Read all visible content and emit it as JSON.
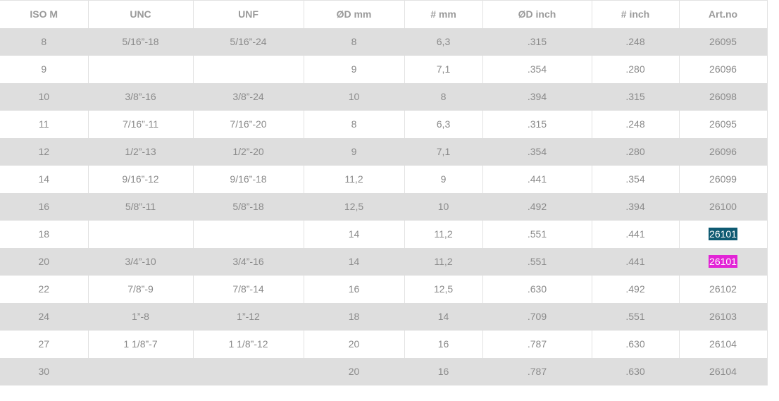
{
  "table": {
    "columns": [
      "ISO M",
      "UNC",
      "UNF",
      "ØD mm",
      "# mm",
      "ØD inch",
      "# inch",
      "Art.no"
    ],
    "rows": [
      [
        "8",
        "5/16”-18",
        "5/16”-24",
        "8",
        "6,3",
        ".315",
        ".248",
        "26095"
      ],
      [
        "9",
        "",
        "",
        "9",
        "7,1",
        ".354",
        ".280",
        "26096"
      ],
      [
        "10",
        "3/8”-16",
        "3/8”-24",
        "10",
        "8",
        ".394",
        ".315",
        "26098"
      ],
      [
        "11",
        "7/16”-11",
        "7/16”-20",
        "8",
        "6,3",
        ".315",
        ".248",
        "26095"
      ],
      [
        "12",
        "1/2”-13",
        "1/2”-20",
        "9",
        "7,1",
        ".354",
        ".280",
        "26096"
      ],
      [
        "14",
        "9/16”-12",
        "9/16”-18",
        "11,2",
        "9",
        ".441",
        ".354",
        "26099"
      ],
      [
        "16",
        "5/8”-11",
        "5/8”-18",
        "12,5",
        "10",
        ".492",
        ".394",
        "26100"
      ],
      [
        "18",
        "",
        "",
        "14",
        "11,2",
        ".551",
        ".441",
        "26101"
      ],
      [
        "20",
        "3/4”-10",
        "3/4”-16",
        "14",
        "11,2",
        ".551",
        ".441",
        "26101"
      ],
      [
        "22",
        "7/8”-9",
        "7/8”-14",
        "16",
        "12,5",
        ".630",
        ".492",
        "26102"
      ],
      [
        "24",
        "1”-8",
        "1”-12",
        "18",
        "14",
        ".709",
        ".551",
        "26103"
      ],
      [
        "27",
        "1 1/8”-7",
        "1 1/8”-12",
        "20",
        "16",
        ".787",
        ".630",
        "26104"
      ],
      [
        "30",
        "",
        "",
        "20",
        "16",
        ".787",
        ".630",
        "26104"
      ]
    ]
  },
  "colors": {
    "stripe": "#dedede",
    "text": "#8a8a8a",
    "highlight_blue": "#0f5a72",
    "highlight_magenta": "#e224d6"
  }
}
